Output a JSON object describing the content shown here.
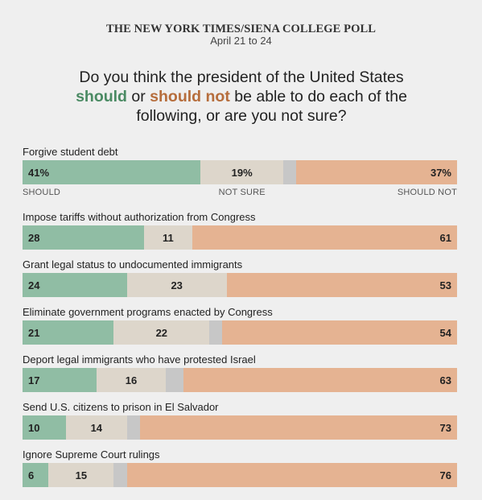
{
  "header": {
    "source": "THE NEW YORK TIMES/SIENA COLLEGE POLL",
    "dates": "April 21 to 24",
    "question_part1": "Do you think the president of the United States ",
    "question_should": "should",
    "question_or": " or ",
    "question_should_not": "should not",
    "question_part2": " be able to do each of the following, or are you not sure?"
  },
  "category_labels": {
    "should": "SHOULD",
    "not_sure": "NOT SURE",
    "should_not": "SHOULD NOT"
  },
  "colors": {
    "should": "#90bda4",
    "not_sure": "#ddd6cb",
    "gap": "#c7c7c7",
    "should_not": "#e5b392",
    "should_text": "#4a8a63",
    "should_not_text": "#b66d3c"
  },
  "chart_data": {
    "type": "bar",
    "stacked": true,
    "orientation": "horizontal",
    "categories": [
      "Forgive student debt",
      "Impose tariffs without authorization from Congress",
      "Grant legal status to undocumented immigrants",
      "Eliminate government programs enacted by Congress",
      "Deport legal immigrants who have protested Israel",
      "Send U.S. citizens to prison in El Salvador",
      "Ignore Supreme Court rulings"
    ],
    "series": [
      {
        "name": "Should",
        "values": [
          41,
          28,
          24,
          21,
          17,
          10,
          6
        ]
      },
      {
        "name": "Not sure",
        "values": [
          19,
          11,
          23,
          22,
          16,
          14,
          15
        ]
      },
      {
        "name": "Should not",
        "values": [
          37,
          61,
          53,
          54,
          63,
          73,
          76
        ]
      }
    ],
    "value_labels": [
      [
        "41%",
        "19%",
        "37%"
      ],
      [
        "28",
        "11",
        "61"
      ],
      [
        "24",
        "23",
        "53"
      ],
      [
        "21",
        "22",
        "54"
      ],
      [
        "17",
        "16",
        "63"
      ],
      [
        "10",
        "14",
        "73"
      ],
      [
        "6",
        "15",
        "76"
      ]
    ],
    "xlim": [
      0,
      100
    ]
  }
}
